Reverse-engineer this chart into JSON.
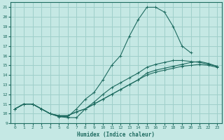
{
  "xlabel": "Humidex (Indice chaleur)",
  "xlim": [
    -0.5,
    23.5
  ],
  "ylim": [
    9,
    21.5
  ],
  "xticks": [
    0,
    1,
    2,
    3,
    4,
    5,
    6,
    7,
    8,
    9,
    10,
    11,
    12,
    13,
    14,
    15,
    16,
    17,
    18,
    19,
    20,
    21,
    22,
    23
  ],
  "yticks": [
    9,
    10,
    11,
    12,
    13,
    14,
    15,
    16,
    17,
    18,
    19,
    20,
    21
  ],
  "bg_color": "#c5e8e4",
  "grid_color": "#9fcfca",
  "line_color": "#1e6b60",
  "lines": [
    {
      "x": [
        0,
        1,
        2,
        3,
        4,
        5,
        6,
        7,
        8,
        9,
        10,
        11,
        12,
        13,
        14,
        15,
        16,
        17,
        18,
        19,
        20
      ],
      "y": [
        10.5,
        11.0,
        11.0,
        10.5,
        10.0,
        9.7,
        9.7,
        10.5,
        11.5,
        12.2,
        13.5,
        15.0,
        16.0,
        18.0,
        19.7,
        21.0,
        21.0,
        20.5,
        19.0,
        17.0,
        16.3
      ],
      "marker": true
    },
    {
      "x": [
        0,
        1,
        2,
        3,
        4,
        5,
        6,
        7,
        8,
        9,
        10,
        11,
        12,
        13,
        14,
        15,
        16,
        17,
        18,
        19,
        20,
        21,
        22,
        23
      ],
      "y": [
        10.5,
        11.0,
        11.0,
        10.5,
        10.0,
        9.7,
        9.6,
        9.6,
        10.5,
        11.0,
        11.5,
        12.0,
        12.5,
        13.0,
        13.5,
        14.0,
        14.3,
        14.5,
        14.7,
        14.9,
        15.0,
        15.1,
        15.0,
        14.8
      ],
      "marker": true
    },
    {
      "x": [
        0,
        1,
        2,
        3,
        4,
        5,
        6,
        7,
        8,
        9,
        10,
        11,
        12,
        13,
        14,
        15,
        16,
        17,
        18,
        19,
        20,
        21,
        22,
        23
      ],
      "y": [
        10.5,
        11.0,
        11.0,
        10.5,
        10.0,
        9.8,
        9.8,
        10.2,
        10.5,
        11.0,
        11.5,
        12.0,
        12.5,
        13.0,
        13.5,
        14.2,
        14.5,
        14.7,
        14.9,
        15.1,
        15.3,
        15.4,
        15.2,
        14.9
      ],
      "marker": true
    },
    {
      "x": [
        0,
        1,
        2,
        3,
        4,
        5,
        6,
        7,
        8,
        9,
        10,
        11,
        12,
        13,
        14,
        15,
        16,
        17,
        18,
        19,
        20,
        21,
        22,
        23
      ],
      "y": [
        10.5,
        11.0,
        11.0,
        10.5,
        10.0,
        9.8,
        9.8,
        10.2,
        10.5,
        11.2,
        12.0,
        12.7,
        13.2,
        13.7,
        14.2,
        14.8,
        15.1,
        15.3,
        15.5,
        15.5,
        15.4,
        15.3,
        15.1,
        14.9
      ],
      "marker": true
    }
  ]
}
